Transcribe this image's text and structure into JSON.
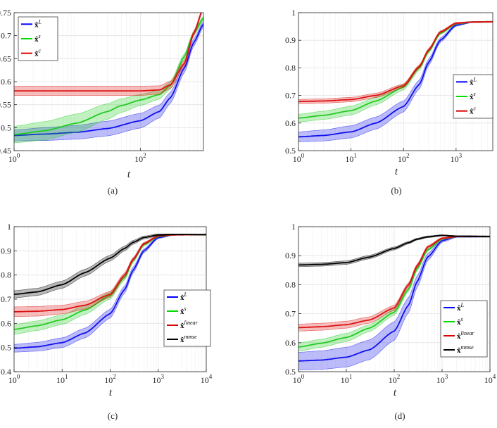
{
  "chart_data": [
    {
      "type": "line",
      "panel": "(a)",
      "caption": "(a)",
      "xlabel": "t",
      "xscale": "log",
      "xlim": [
        1,
        1000
      ],
      "ylim": [
        0.45,
        0.75
      ],
      "xticks": [
        {
          "v": 1,
          "b": "10",
          "e": "0"
        },
        {
          "v": 100,
          "b": "10",
          "e": "2"
        }
      ],
      "yticks": [
        0.45,
        0.5,
        0.55,
        0.6,
        0.65,
        0.7,
        0.75
      ],
      "yticklabels": [
        "0.45",
        "0.5",
        "0.55",
        "0.6",
        "0.65",
        "0.7",
        "0.75"
      ],
      "legend": {
        "position": "top-left",
        "entries": [
          {
            "base": "x̂",
            "sup": "L",
            "color": "#0000ff"
          },
          {
            "base": "x̂",
            "sup": "s",
            "color": "#00dd00"
          },
          {
            "base": "x̂",
            "sup": "c",
            "color": "#dd0000"
          }
        ]
      },
      "series": [
        {
          "name": "x̂^L",
          "color": "#1010ee",
          "x": [
            1,
            3,
            10,
            30,
            100,
            200,
            300,
            500,
            700,
            1000
          ],
          "y": [
            0.483,
            0.486,
            0.49,
            0.498,
            0.515,
            0.535,
            0.565,
            0.63,
            0.685,
            0.725
          ],
          "band": [
            0.012,
            0.014,
            0.015,
            0.016,
            0.016,
            0.014,
            0.012,
            0.01,
            0.008,
            0.006
          ]
        },
        {
          "name": "x̂^s",
          "color": "#22cc22",
          "x": [
            1,
            3,
            10,
            30,
            50,
            100,
            200,
            300,
            500,
            700,
            1000
          ],
          "y": [
            0.485,
            0.493,
            0.51,
            0.535,
            0.548,
            0.56,
            0.572,
            0.592,
            0.655,
            0.705,
            0.738
          ],
          "band": [
            0.018,
            0.02,
            0.02,
            0.017,
            0.015,
            0.012,
            0.01,
            0.008,
            0.006,
            0.005,
            0.004
          ]
        },
        {
          "name": "x̂^c",
          "color": "#dd1111",
          "x": [
            1,
            3,
            10,
            30,
            100,
            200,
            300,
            500,
            700,
            1000
          ],
          "y": [
            0.58,
            0.58,
            0.58,
            0.58,
            0.58,
            0.582,
            0.593,
            0.64,
            0.705,
            0.76
          ],
          "band": [
            0.01,
            0.01,
            0.01,
            0.01,
            0.01,
            0.009,
            0.008,
            0.006,
            0.005,
            0.004
          ]
        }
      ]
    },
    {
      "type": "line",
      "panel": "(b)",
      "caption": "(b)",
      "xlabel": "t",
      "xscale": "log",
      "xlim": [
        1,
        5000
      ],
      "ylim": [
        0.5,
        1.0
      ],
      "xticks": [
        {
          "v": 1,
          "b": "10",
          "e": "0"
        },
        {
          "v": 10,
          "b": "10",
          "e": "1"
        },
        {
          "v": 100,
          "b": "10",
          "e": "2"
        },
        {
          "v": 1000,
          "b": "10",
          "e": "3"
        }
      ],
      "yticks": [
        0.5,
        0.6,
        0.7,
        0.8,
        0.9,
        1.0
      ],
      "yticklabels": [
        "0.5",
        "0.6",
        "0.7",
        "0.8",
        "0.9",
        "1"
      ],
      "legend": {
        "position": "middle-right",
        "entries": [
          {
            "base": "x̂",
            "sup": "L",
            "color": "#0000ff"
          },
          {
            "base": "x̂",
            "sup": "s",
            "color": "#00dd00"
          },
          {
            "base": "x̂",
            "sup": "c",
            "color": "#dd0000"
          }
        ]
      },
      "series": [
        {
          "name": "x̂^L",
          "color": "#1010ee",
          "x": [
            1,
            3,
            10,
            30,
            100,
            200,
            300,
            500,
            1000,
            2000,
            5000
          ],
          "y": [
            0.55,
            0.555,
            0.568,
            0.6,
            0.66,
            0.74,
            0.82,
            0.9,
            0.955,
            0.966,
            0.967
          ],
          "band": [
            0.018,
            0.02,
            0.022,
            0.022,
            0.02,
            0.016,
            0.012,
            0.008,
            0.004,
            0.002,
            0.002
          ]
        },
        {
          "name": "x̂^s",
          "color": "#22cc22",
          "x": [
            1,
            3,
            10,
            30,
            100,
            200,
            300,
            500,
            1000,
            2000,
            5000
          ],
          "y": [
            0.618,
            0.628,
            0.645,
            0.68,
            0.73,
            0.8,
            0.86,
            0.925,
            0.96,
            0.966,
            0.967
          ],
          "band": [
            0.014,
            0.015,
            0.016,
            0.014,
            0.01,
            0.008,
            0.006,
            0.004,
            0.003,
            0.002,
            0.002
          ]
        },
        {
          "name": "x̂^c",
          "color": "#dd1111",
          "x": [
            1,
            3,
            10,
            30,
            100,
            200,
            300,
            500,
            1000,
            2000,
            5000
          ],
          "y": [
            0.678,
            0.68,
            0.685,
            0.7,
            0.735,
            0.805,
            0.865,
            0.93,
            0.962,
            0.966,
            0.967
          ],
          "band": [
            0.008,
            0.008,
            0.008,
            0.008,
            0.007,
            0.006,
            0.005,
            0.004,
            0.003,
            0.002,
            0.002
          ]
        }
      ]
    },
    {
      "type": "line",
      "panel": "(c)",
      "caption": "(c)",
      "xlabel": "t",
      "xscale": "log",
      "xlim": [
        1,
        10000
      ],
      "ylim": [
        0.4,
        1.0
      ],
      "xticks": [
        {
          "v": 1,
          "b": "10",
          "e": "0"
        },
        {
          "v": 10,
          "b": "10",
          "e": "1"
        },
        {
          "v": 100,
          "b": "10",
          "e": "2"
        },
        {
          "v": 1000,
          "b": "10",
          "e": "3"
        },
        {
          "v": 10000,
          "b": "10",
          "e": "4"
        }
      ],
      "yticks": [
        0.4,
        0.5,
        0.6,
        0.7,
        0.8,
        0.9,
        1.0
      ],
      "yticklabels": [
        "0.4",
        "0.5",
        "0.6",
        "0.7",
        "0.8",
        "0.9",
        "1"
      ],
      "legend": {
        "position": "middle-right",
        "entries": [
          {
            "base": "x̂",
            "sup": "L",
            "color": "#0000ff"
          },
          {
            "base": "x̂",
            "sup": "s",
            "color": "#00dd00"
          },
          {
            "base": "x̂",
            "sup": "linear",
            "color": "#dd0000"
          },
          {
            "base": "x̂",
            "sup": "mmse",
            "color": "#000000"
          }
        ]
      },
      "series": [
        {
          "name": "x̂^L",
          "color": "#1010ee",
          "x": [
            1,
            3,
            10,
            30,
            100,
            200,
            300,
            500,
            1000,
            2000,
            10000
          ],
          "y": [
            0.497,
            0.503,
            0.52,
            0.56,
            0.64,
            0.74,
            0.82,
            0.9,
            0.955,
            0.966,
            0.967
          ],
          "band": [
            0.016,
            0.018,
            0.02,
            0.02,
            0.018,
            0.015,
            0.012,
            0.008,
            0.004,
            0.002,
            0.002
          ]
        },
        {
          "name": "x̂^s",
          "color": "#22cc22",
          "x": [
            1,
            3,
            10,
            30,
            100,
            200,
            300,
            500,
            1000,
            2000,
            10000
          ],
          "y": [
            0.575,
            0.59,
            0.615,
            0.655,
            0.715,
            0.79,
            0.86,
            0.925,
            0.96,
            0.966,
            0.967
          ],
          "band": [
            0.02,
            0.02,
            0.02,
            0.018,
            0.014,
            0.01,
            0.008,
            0.005,
            0.003,
            0.002,
            0.002
          ]
        },
        {
          "name": "x̂^linear",
          "color": "#dd1111",
          "x": [
            1,
            3,
            10,
            30,
            100,
            200,
            300,
            500,
            1000,
            2000,
            10000
          ],
          "y": [
            0.648,
            0.65,
            0.657,
            0.675,
            0.72,
            0.8,
            0.865,
            0.93,
            0.962,
            0.966,
            0.967
          ],
          "band": [
            0.02,
            0.02,
            0.018,
            0.016,
            0.012,
            0.009,
            0.007,
            0.005,
            0.003,
            0.002,
            0.002
          ]
        },
        {
          "name": "x̂^mmse",
          "color": "#000000",
          "x": [
            1,
            3,
            10,
            30,
            100,
            200,
            300,
            500,
            1000,
            2000,
            10000
          ],
          "y": [
            0.72,
            0.73,
            0.76,
            0.81,
            0.87,
            0.91,
            0.935,
            0.955,
            0.966,
            0.968,
            0.967
          ],
          "band": [
            0.015,
            0.015,
            0.015,
            0.014,
            0.012,
            0.01,
            0.008,
            0.006,
            0.004,
            0.002,
            0.002
          ]
        }
      ]
    },
    {
      "type": "line",
      "panel": "(d)",
      "caption": "(d)",
      "xlabel": "t",
      "xscale": "log",
      "xlim": [
        1,
        10000
      ],
      "ylim": [
        0.5,
        1.0
      ],
      "xticks": [
        {
          "v": 1,
          "b": "10",
          "e": "0"
        },
        {
          "v": 10,
          "b": "10",
          "e": "1"
        },
        {
          "v": 100,
          "b": "10",
          "e": "2"
        },
        {
          "v": 1000,
          "b": "10",
          "e": "3"
        },
        {
          "v": 10000,
          "b": "10",
          "e": "4"
        }
      ],
      "yticks": [
        0.5,
        0.6,
        0.7,
        0.8,
        0.9,
        1.0
      ],
      "yticklabels": [
        "0.5",
        "0.6",
        "0.7",
        "0.8",
        "0.9",
        "1"
      ],
      "legend": {
        "position": "middle-right",
        "entries": [
          {
            "base": "x̂",
            "sup": "L",
            "color": "#0000ff"
          },
          {
            "base": "x̂",
            "sup": "s",
            "color": "#00dd00"
          },
          {
            "base": "x̂",
            "sup": "linear",
            "color": "#dd0000"
          },
          {
            "base": "x̂",
            "sup": "mmse",
            "color": "#000000"
          }
        ]
      },
      "series": [
        {
          "name": "x̂^L",
          "color": "#1010ee",
          "x": [
            1,
            3,
            10,
            30,
            100,
            200,
            300,
            500,
            1000,
            2000,
            10000
          ],
          "y": [
            0.537,
            0.54,
            0.55,
            0.575,
            0.64,
            0.73,
            0.81,
            0.895,
            0.952,
            0.966,
            0.966
          ],
          "band": [
            0.03,
            0.032,
            0.034,
            0.034,
            0.032,
            0.026,
            0.02,
            0.012,
            0.006,
            0.003,
            0.002
          ]
        },
        {
          "name": "x̂^s",
          "color": "#22cc22",
          "x": [
            1,
            3,
            10,
            30,
            100,
            200,
            300,
            500,
            1000,
            2000,
            10000
          ],
          "y": [
            0.585,
            0.598,
            0.618,
            0.65,
            0.705,
            0.785,
            0.855,
            0.92,
            0.958,
            0.966,
            0.966
          ],
          "band": [
            0.014,
            0.014,
            0.014,
            0.012,
            0.01,
            0.008,
            0.006,
            0.004,
            0.003,
            0.002,
            0.002
          ]
        },
        {
          "name": "x̂^linear",
          "color": "#dd1111",
          "x": [
            1,
            3,
            10,
            30,
            100,
            200,
            300,
            500,
            1000,
            2000,
            10000
          ],
          "y": [
            0.652,
            0.655,
            0.662,
            0.678,
            0.72,
            0.8,
            0.865,
            0.93,
            0.96,
            0.966,
            0.966
          ],
          "band": [
            0.012,
            0.012,
            0.012,
            0.011,
            0.009,
            0.007,
            0.006,
            0.004,
            0.003,
            0.002,
            0.002
          ]
        },
        {
          "name": "x̂^mmse",
          "color": "#000000",
          "x": [
            1,
            3,
            10,
            30,
            100,
            200,
            300,
            500,
            1000,
            2000,
            10000
          ],
          "y": [
            0.868,
            0.87,
            0.876,
            0.895,
            0.925,
            0.945,
            0.957,
            0.965,
            0.97,
            0.967,
            0.966
          ],
          "band": [
            0.006,
            0.006,
            0.006,
            0.006,
            0.005,
            0.004,
            0.003,
            0.003,
            0.002,
            0.002,
            0.002
          ]
        }
      ]
    }
  ]
}
